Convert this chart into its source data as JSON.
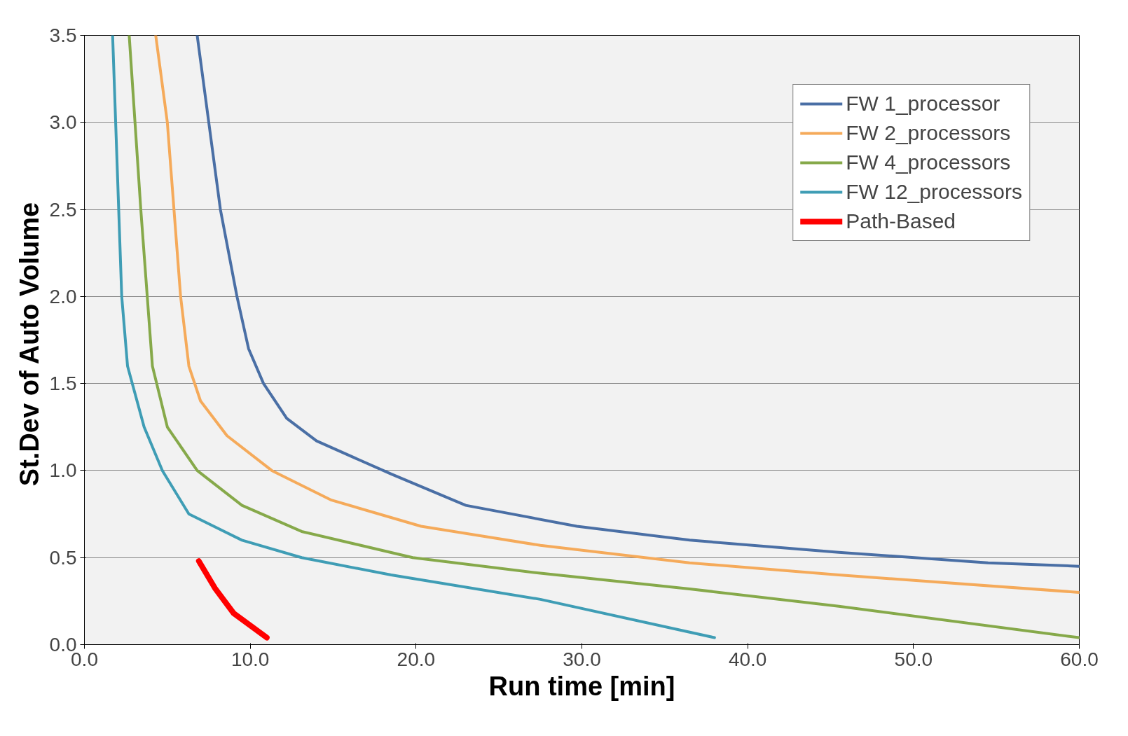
{
  "chart_data": {
    "type": "line",
    "xlabel": "Run time [min]",
    "ylabel": "St.Dev  of Auto Volume",
    "xlim": [
      0,
      60
    ],
    "ylim": [
      0,
      3.5
    ],
    "xticks": [
      {
        "value": 0,
        "label": "0.0"
      },
      {
        "value": 10,
        "label": "10.0"
      },
      {
        "value": 20,
        "label": "20.0"
      },
      {
        "value": 30,
        "label": "30.0"
      },
      {
        "value": 40,
        "label": "40.0"
      },
      {
        "value": 50,
        "label": "50.0"
      },
      {
        "value": 60,
        "label": "60.0"
      }
    ],
    "yticks": [
      {
        "value": 0,
        "label": "0.0"
      },
      {
        "value": 0.5,
        "label": "0.5"
      },
      {
        "value": 1,
        "label": "1.0"
      },
      {
        "value": 1.5,
        "label": "1.5"
      },
      {
        "value": 2,
        "label": "2.0"
      },
      {
        "value": 2.5,
        "label": "2.5"
      },
      {
        "value": 3,
        "label": "3.0"
      },
      {
        "value": 3.5,
        "label": "3.5"
      }
    ],
    "grid": "y",
    "legend": "top right",
    "marker": "none",
    "line_style": "solid",
    "series": [
      {
        "name": "FW 1_processor",
        "color": "#4a6fa5",
        "x": [
          6.8,
          8.2,
          9.2,
          9.9,
          10.8,
          12.2,
          14.0,
          18.5,
          23,
          29.7,
          36.5,
          45.5,
          54.5,
          60
        ],
        "values": [
          3.5,
          2.5,
          2.0,
          1.7,
          1.5,
          1.3,
          1.17,
          0.98,
          0.8,
          0.68,
          0.6,
          0.53,
          0.47,
          0.45
        ]
      },
      {
        "name": "FW 2_processors",
        "color": "#f5aa5a",
        "x": [
          4.3,
          5.0,
          5.8,
          6.3,
          7.0,
          8.6,
          11.3,
          14.9,
          20.3,
          27.5,
          36.5,
          45.5,
          60
        ],
        "values": [
          3.5,
          3.0,
          2.0,
          1.6,
          1.4,
          1.2,
          1.0,
          0.83,
          0.68,
          0.57,
          0.47,
          0.4,
          0.3
        ]
      },
      {
        "name": "FW 4_processors",
        "color": "#86a94a",
        "x": [
          2.7,
          3.4,
          4.1,
          5.0,
          6.8,
          9.5,
          13.1,
          19.8,
          27.5,
          36.5,
          45.5,
          60
        ],
        "values": [
          3.5,
          2.5,
          1.6,
          1.25,
          1.0,
          0.8,
          0.65,
          0.5,
          0.41,
          0.32,
          0.22,
          0.04
        ]
      },
      {
        "name": "FW 12_processors",
        "color": "#3f9db5",
        "x": [
          1.7,
          2.25,
          2.6,
          3.6,
          4.7,
          6.3,
          9.5,
          13.1,
          18.5,
          27.5,
          38
        ],
        "values": [
          3.5,
          2.0,
          1.6,
          1.25,
          1.0,
          0.75,
          0.6,
          0.5,
          0.4,
          0.26,
          0.04
        ]
      },
      {
        "name": "Path-Based",
        "color": "#ff0000",
        "x": [
          6.9,
          7.9,
          9.0,
          11.0
        ],
        "values": [
          0.48,
          0.32,
          0.18,
          0.04
        ]
      }
    ]
  }
}
